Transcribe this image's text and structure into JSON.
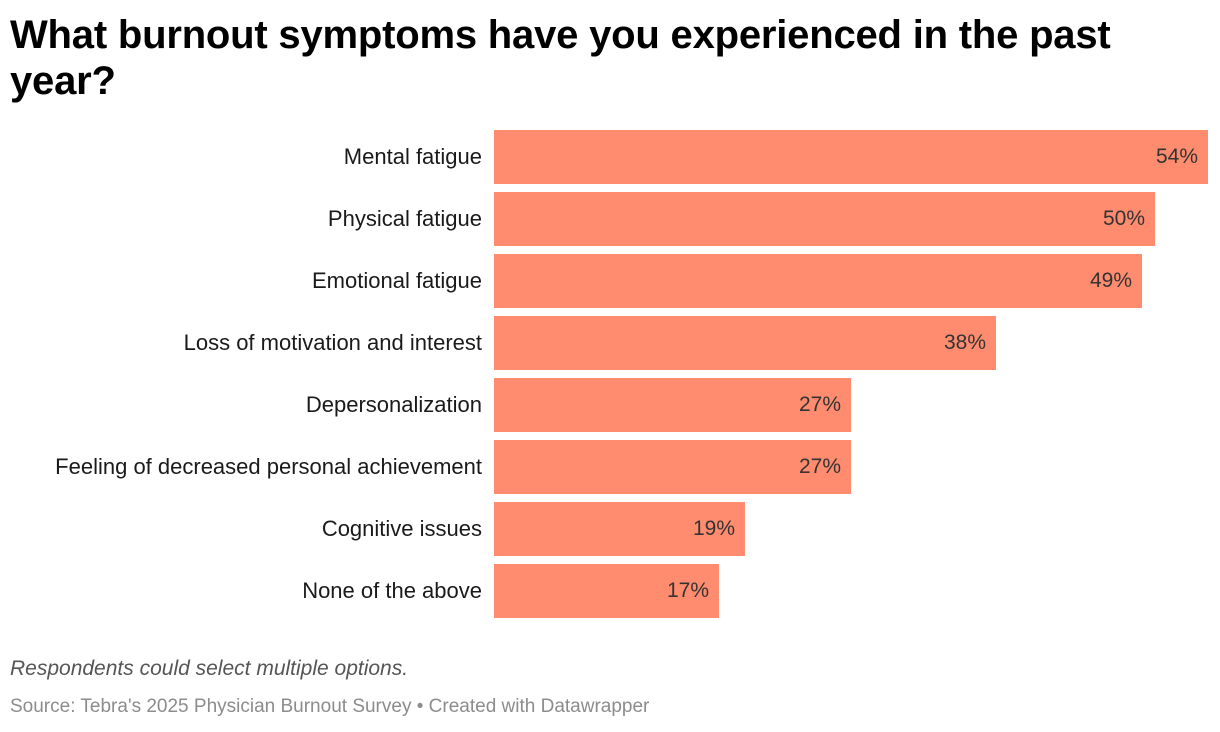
{
  "chart_data": {
    "type": "bar",
    "orientation": "horizontal",
    "title": "What burnout symptoms have you experienced in the past year?",
    "categories": [
      "Mental fatigue",
      "Physical fatigue",
      "Emotional fatigue",
      "Loss of motivation and interest",
      "Depersonalization",
      "Feeling of decreased personal achievement",
      "Cognitive issues",
      "None of the above"
    ],
    "values": [
      54,
      50,
      49,
      38,
      27,
      27,
      19,
      17
    ],
    "value_suffix": "%",
    "xlim": [
      0,
      54
    ],
    "bar_color": "#ff8c6e",
    "grid": false,
    "note": "Respondents could select multiple options.",
    "source_label": "Source: Tebra's 2025 Physician Burnout Survey",
    "separator": "•",
    "credit": "Created with Datawrapper"
  }
}
